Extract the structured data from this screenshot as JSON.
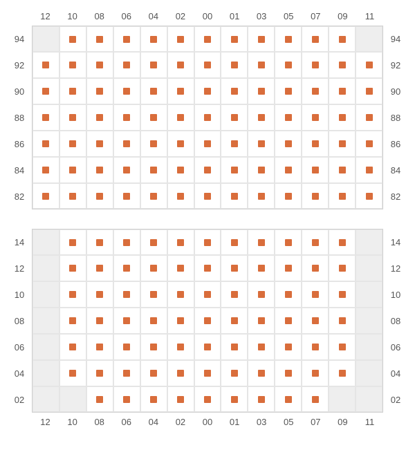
{
  "marker_color": "#d96d3b",
  "blank_color": "#eeeeee",
  "cell_bg": "#ffffff",
  "grid_line_color": "#e5e5e5",
  "label_color": "#555555",
  "label_fontsize": 13,
  "columns": [
    "12",
    "10",
    "08",
    "06",
    "04",
    "02",
    "00",
    "01",
    "03",
    "05",
    "07",
    "09",
    "11"
  ],
  "sections": [
    {
      "id": "top",
      "show_top_labels": true,
      "show_bottom_labels": false,
      "rows": [
        {
          "label": "94",
          "cells": [
            0,
            1,
            1,
            1,
            1,
            1,
            1,
            1,
            1,
            1,
            1,
            1,
            0
          ]
        },
        {
          "label": "92",
          "cells": [
            1,
            1,
            1,
            1,
            1,
            1,
            1,
            1,
            1,
            1,
            1,
            1,
            1
          ]
        },
        {
          "label": "90",
          "cells": [
            1,
            1,
            1,
            1,
            1,
            1,
            1,
            1,
            1,
            1,
            1,
            1,
            1
          ]
        },
        {
          "label": "88",
          "cells": [
            1,
            1,
            1,
            1,
            1,
            1,
            1,
            1,
            1,
            1,
            1,
            1,
            1
          ]
        },
        {
          "label": "86",
          "cells": [
            1,
            1,
            1,
            1,
            1,
            1,
            1,
            1,
            1,
            1,
            1,
            1,
            1
          ]
        },
        {
          "label": "84",
          "cells": [
            1,
            1,
            1,
            1,
            1,
            1,
            1,
            1,
            1,
            1,
            1,
            1,
            1
          ]
        },
        {
          "label": "82",
          "cells": [
            1,
            1,
            1,
            1,
            1,
            1,
            1,
            1,
            1,
            1,
            1,
            1,
            1
          ]
        }
      ]
    },
    {
      "id": "bottom",
      "show_top_labels": false,
      "show_bottom_labels": true,
      "rows": [
        {
          "label": "14",
          "cells": [
            0,
            1,
            1,
            1,
            1,
            1,
            1,
            1,
            1,
            1,
            1,
            1,
            0
          ]
        },
        {
          "label": "12",
          "cells": [
            0,
            1,
            1,
            1,
            1,
            1,
            1,
            1,
            1,
            1,
            1,
            1,
            0
          ]
        },
        {
          "label": "10",
          "cells": [
            0,
            1,
            1,
            1,
            1,
            1,
            1,
            1,
            1,
            1,
            1,
            1,
            0
          ]
        },
        {
          "label": "08",
          "cells": [
            0,
            1,
            1,
            1,
            1,
            1,
            1,
            1,
            1,
            1,
            1,
            1,
            0
          ]
        },
        {
          "label": "06",
          "cells": [
            0,
            1,
            1,
            1,
            1,
            1,
            1,
            1,
            1,
            1,
            1,
            1,
            0
          ]
        },
        {
          "label": "04",
          "cells": [
            0,
            1,
            1,
            1,
            1,
            1,
            1,
            1,
            1,
            1,
            1,
            1,
            0
          ]
        },
        {
          "label": "02",
          "cells": [
            0,
            0,
            1,
            1,
            1,
            1,
            1,
            1,
            1,
            1,
            1,
            0,
            0
          ]
        }
      ]
    }
  ]
}
